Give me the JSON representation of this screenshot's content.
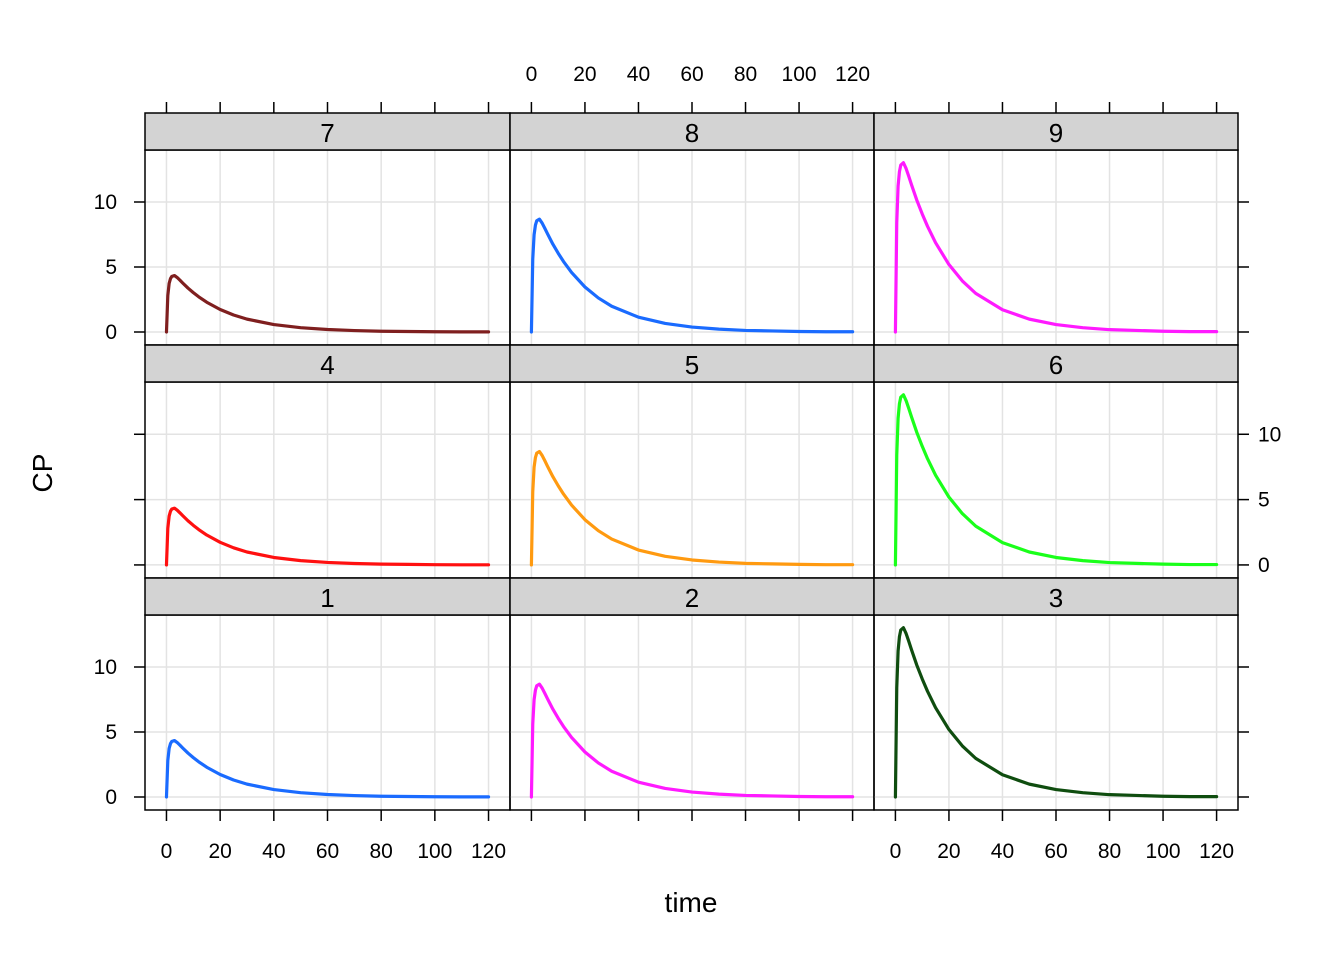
{
  "chart_data": {
    "type": "line",
    "layout": "3x3 trellis",
    "xlabel": "time",
    "ylabel": "CP",
    "xlim": [
      -8,
      128
    ],
    "ylim": [
      -1,
      14
    ],
    "x_ticks": [
      0,
      20,
      40,
      60,
      80,
      100,
      120
    ],
    "y_ticks": [
      0,
      5,
      10
    ],
    "x": [
      0,
      0.5,
      1,
      1.5,
      2,
      3,
      4,
      5,
      6,
      8,
      10,
      12,
      15,
      20,
      25,
      30,
      40,
      50,
      60,
      70,
      80,
      90,
      100,
      110,
      120
    ],
    "panels": [
      {
        "label": "7",
        "color": "#7f1f1f",
        "values": [
          0,
          2.8,
          3.74,
          4.11,
          4.28,
          4.34,
          4.19,
          3.99,
          3.78,
          3.38,
          3.03,
          2.71,
          2.29,
          1.73,
          1.31,
          0.99,
          0.57,
          0.33,
          0.19,
          0.11,
          0.06,
          0.04,
          0.02,
          0.01,
          0.01
        ]
      },
      {
        "label": "8",
        "color": "#1a6bff",
        "values": [
          0,
          5.6,
          7.48,
          8.22,
          8.56,
          8.68,
          8.38,
          7.98,
          7.56,
          6.76,
          6.06,
          5.42,
          4.58,
          3.46,
          2.62,
          1.98,
          1.14,
          0.66,
          0.38,
          0.22,
          0.12,
          0.08,
          0.04,
          0.02,
          0.02
        ]
      },
      {
        "label": "9",
        "color": "#ff1aff",
        "values": [
          0,
          8.4,
          11.22,
          12.33,
          12.84,
          13.02,
          12.57,
          11.97,
          11.34,
          10.14,
          9.09,
          8.13,
          6.87,
          5.19,
          3.93,
          2.97,
          1.71,
          0.99,
          0.57,
          0.33,
          0.18,
          0.12,
          0.06,
          0.03,
          0.03
        ]
      },
      {
        "label": "4",
        "color": "#ff1010",
        "values": [
          0,
          2.8,
          3.74,
          4.11,
          4.28,
          4.34,
          4.19,
          3.99,
          3.78,
          3.38,
          3.03,
          2.71,
          2.29,
          1.73,
          1.31,
          0.99,
          0.57,
          0.33,
          0.19,
          0.11,
          0.06,
          0.04,
          0.02,
          0.01,
          0.01
        ]
      },
      {
        "label": "5",
        "color": "#ff9a10",
        "values": [
          0,
          5.6,
          7.48,
          8.22,
          8.56,
          8.68,
          8.38,
          7.98,
          7.56,
          6.76,
          6.06,
          5.42,
          4.58,
          3.46,
          2.62,
          1.98,
          1.14,
          0.66,
          0.38,
          0.22,
          0.12,
          0.08,
          0.04,
          0.02,
          0.02
        ]
      },
      {
        "label": "6",
        "color": "#1aff1a",
        "values": [
          0,
          8.4,
          11.22,
          12.33,
          12.84,
          13.02,
          12.57,
          11.97,
          11.34,
          10.14,
          9.09,
          8.13,
          6.87,
          5.19,
          3.93,
          2.97,
          1.71,
          0.99,
          0.57,
          0.33,
          0.18,
          0.12,
          0.06,
          0.03,
          0.03
        ]
      },
      {
        "label": "1",
        "color": "#1a6bff",
        "values": [
          0,
          2.8,
          3.74,
          4.11,
          4.28,
          4.34,
          4.19,
          3.99,
          3.78,
          3.38,
          3.03,
          2.71,
          2.29,
          1.73,
          1.31,
          0.99,
          0.57,
          0.33,
          0.19,
          0.11,
          0.06,
          0.04,
          0.02,
          0.01,
          0.01
        ]
      },
      {
        "label": "2",
        "color": "#ff1aff",
        "values": [
          0,
          5.6,
          7.48,
          8.22,
          8.56,
          8.68,
          8.38,
          7.98,
          7.56,
          6.76,
          6.06,
          5.42,
          4.58,
          3.46,
          2.62,
          1.98,
          1.14,
          0.66,
          0.38,
          0.22,
          0.12,
          0.08,
          0.04,
          0.02,
          0.02
        ]
      },
      {
        "label": "3",
        "color": "#0f4d0f",
        "values": [
          0,
          8.4,
          11.22,
          12.33,
          12.84,
          13.02,
          12.57,
          11.97,
          11.34,
          10.14,
          9.09,
          8.13,
          6.87,
          5.19,
          3.93,
          2.97,
          1.71,
          0.99,
          0.57,
          0.33,
          0.18,
          0.12,
          0.06,
          0.03,
          0.03
        ]
      }
    ],
    "grid": true,
    "legend": "none"
  }
}
